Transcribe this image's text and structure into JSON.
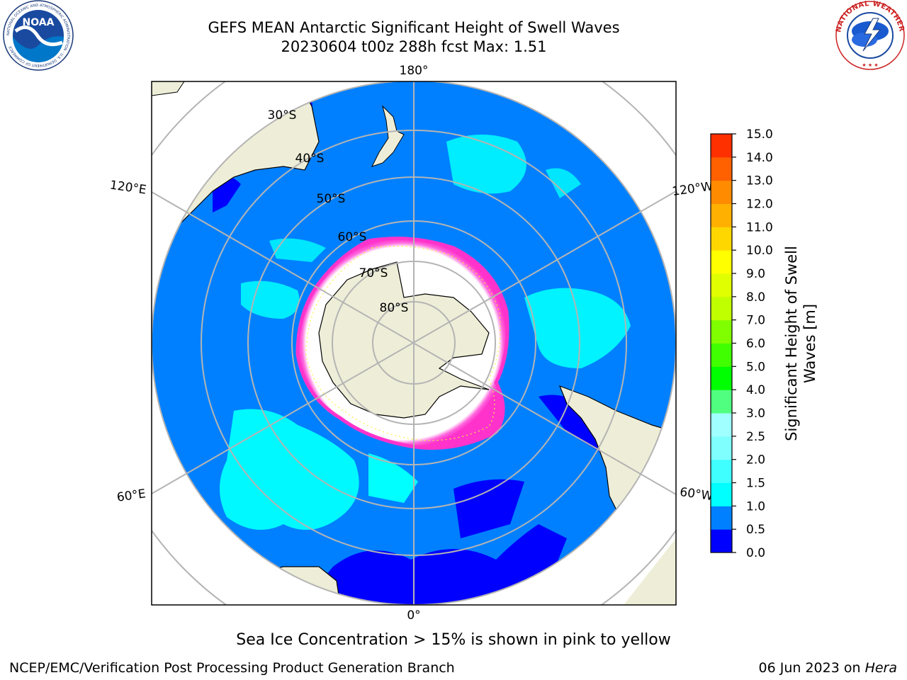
{
  "title": "GEFS MEAN Antarctic Significant Height of Swell Waves",
  "subtitle": "20230604 t00z 288h fcst   Max: 1.51",
  "map": {
    "projection": "south-polar-stereographic",
    "lon_labels": [
      "180°",
      "120°E",
      "120°W",
      "60°E",
      "60°W",
      "0°"
    ],
    "lat_labels": [
      "30°S",
      "40°S",
      "50°S",
      "60°S",
      "70°S",
      "80°S"
    ],
    "colors": {
      "land": "#eeeed8",
      "ocean_0_0.5": "#0000ff",
      "ocean_0.5_1.0": "#0080ff",
      "ocean_1.0_1.5": "#00ffff",
      "sea_ice_edge": "#ff33cc",
      "sea_ice_interior": "#ffffff",
      "grid": "#b4b4b4"
    }
  },
  "colorbar": {
    "label": "Significant Height of Swell Waves [m]",
    "label_line1": "Significant Height of Swell",
    "label_line2": "Waves [m]",
    "ticks": [
      "0.0",
      "0.5",
      "1.0",
      "1.5",
      "2.0",
      "2.5",
      "3.0",
      "4.0",
      "5.0",
      "6.0",
      "7.0",
      "8.0",
      "9.0",
      "10.0",
      "11.0",
      "12.0",
      "13.0",
      "14.0",
      "15.0"
    ],
    "colors": [
      "#0000ff",
      "#0080ff",
      "#00ffff",
      "#40ffff",
      "#80ffff",
      "#a0ffff",
      "#50ff80",
      "#00ff00",
      "#40ff00",
      "#80ff00",
      "#c0ff00",
      "#e0ff00",
      "#ffff00",
      "#ffd700",
      "#ffb000",
      "#ff8c00",
      "#ff6000",
      "#ff3000",
      "#ff0000"
    ]
  },
  "logos": {
    "noaa": "NOAA",
    "noaa_ring": "NATIONAL OCEANIC AND ATMOSPHERIC ADMINISTRATION · U.S. DEPARTMENT OF COMMERCE",
    "nws_ring": "NATIONAL WEATHER SERVICE"
  },
  "footer": {
    "note": "Sea Ice Concentration > 15% is shown in pink to yellow",
    "credit": "NCEP/EMC/Verification Post Processing Product Generation Branch",
    "date": "06 Jun 2023 on",
    "host": "Hera"
  }
}
